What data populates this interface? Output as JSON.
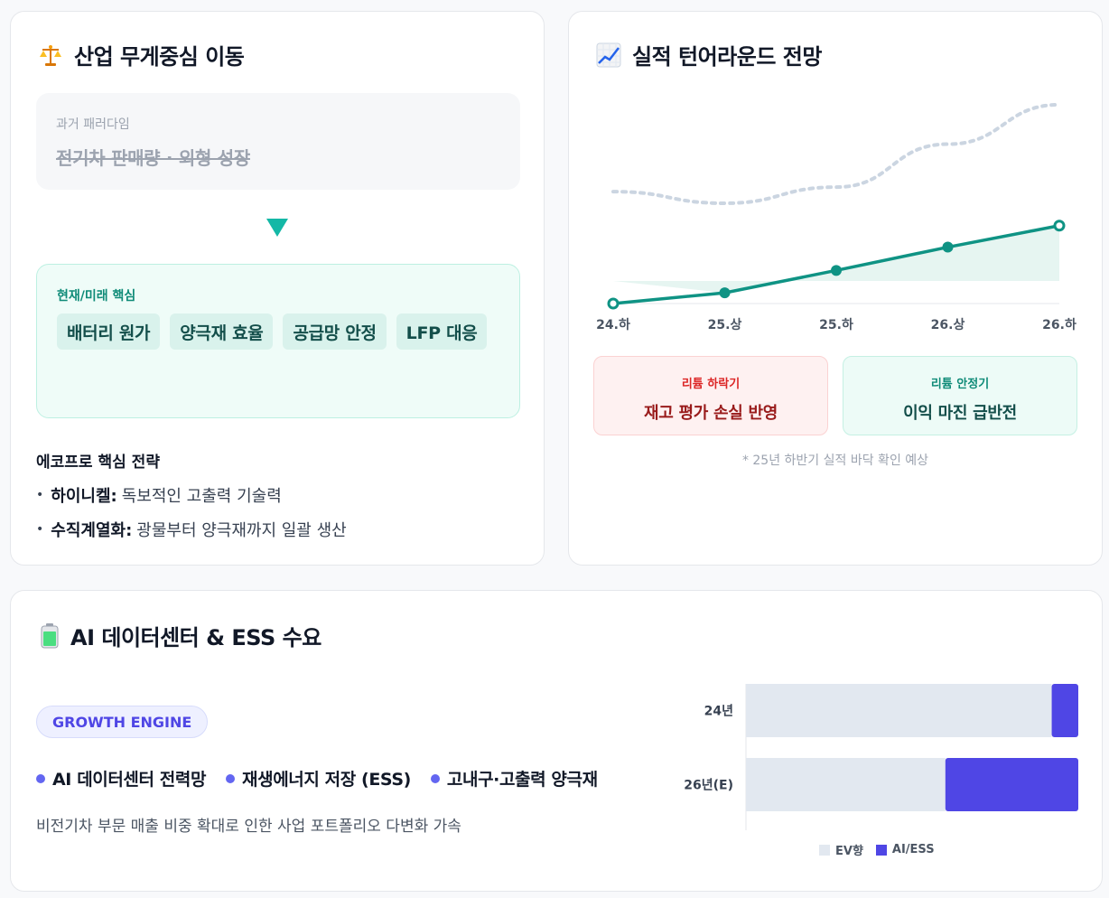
{
  "colors": {
    "teal": "#14b8a6",
    "teal_dark": "#0f8b78",
    "indigo": "#4f46e5",
    "gray_bar": "#e2e8f0",
    "red_text": "#991b1b"
  },
  "shift": {
    "icon": "balance-scale-icon",
    "title": "산업 무게중심 이동",
    "past_label": "과거 패러다임",
    "past_text": "전기차 판매량 · 외형 성장",
    "now_label": "현재/미래 핵심",
    "chips": [
      "배터리 원가",
      "양극재 효율",
      "공급망 안정",
      "LFP 대응"
    ],
    "strategy_title": "에코프로 핵심 전략",
    "strategy": [
      {
        "bold": "하이니켈:",
        "text": "독보적인 고출력 기술력"
      },
      {
        "bold": "수직계열화:",
        "text": "광물부터 양극재까지 일괄 생산"
      }
    ]
  },
  "turnaround": {
    "icon": "chart-increasing-icon",
    "title": "실적 턴어라운드 전망",
    "phases": {
      "down_sub": "리튬 하락기",
      "down_main": "재고 평가 손실 반영",
      "stable_sub": "리튬 안정기",
      "stable_main": "이익 마진 급반전"
    },
    "footnote": "* 25년 하반기 실적 바닥 확인 예상"
  },
  "ai": {
    "icon": "battery-icon",
    "title": "AI 데이터센터 & ESS 수요",
    "pill": "GROWTH ENGINE",
    "items": [
      "AI 데이터센터 전력망",
      "재생에너지 저장 (ESS)",
      "고내구·고출력 양극재"
    ],
    "desc": "비전기차 부문 매출 비중 확대로 인한 사업 포트폴리오 다변화 가속"
  },
  "chart_data": [
    {
      "type": "line",
      "categories": [
        "24.하",
        "25.상",
        "25.하",
        "26.상",
        "26.하"
      ],
      "series": [
        {
          "style": "solid",
          "color": "#0f9384",
          "values": [
            0,
            12,
            37,
            63,
            87
          ]
        },
        {
          "style": "dotted",
          "color": "#cbd5e1",
          "values": [
            125,
            112,
            130,
            178,
            222
          ]
        }
      ],
      "ylim": [
        0,
        230
      ]
    },
    {
      "type": "bar",
      "orientation": "horizontal",
      "stacked": true,
      "categories": [
        "24년",
        "26년(E)"
      ],
      "series": [
        {
          "name": "EV향",
          "color": "#e2e8f0",
          "values": [
            92,
            60
          ]
        },
        {
          "name": "AI/ESS",
          "color": "#4f46e5",
          "values": [
            8,
            40
          ]
        }
      ],
      "xlim": [
        0,
        100
      ]
    }
  ]
}
